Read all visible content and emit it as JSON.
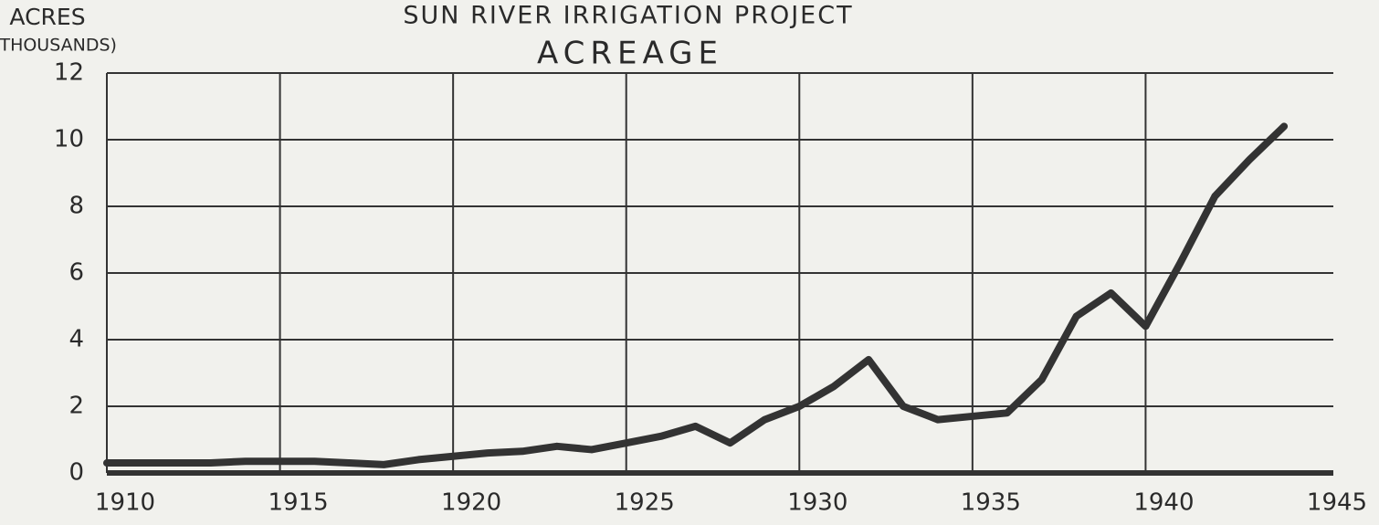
{
  "chart_data": {
    "type": "line",
    "title": "SUN RIVER IRRIGATION PROJECT",
    "subtitle": "ACREAGE",
    "y_label": "ACRES",
    "y_label_units": "(THOUSANDS)",
    "x": [
      1910,
      1911,
      1912,
      1913,
      1914,
      1915,
      1916,
      1917,
      1918,
      1919,
      1920,
      1921,
      1922,
      1923,
      1924,
      1925,
      1926,
      1927,
      1928,
      1929,
      1930,
      1931,
      1932,
      1933,
      1934,
      1935,
      1936,
      1937,
      1938,
      1939,
      1940,
      1941,
      1942,
      1943,
      1944
    ],
    "series": [
      {
        "name": "Acreage",
        "color": "#333333",
        "values": [
          0.3,
          0.3,
          0.3,
          0.3,
          0.35,
          0.35,
          0.35,
          0.3,
          0.25,
          0.4,
          0.5,
          0.6,
          0.65,
          0.8,
          0.7,
          0.9,
          1.1,
          1.4,
          0.9,
          1.6,
          2.0,
          2.6,
          3.4,
          2.0,
          1.6,
          1.7,
          1.8,
          2.8,
          4.7,
          5.4,
          4.4,
          6.3,
          8.3,
          9.4,
          10.4
        ]
      }
    ],
    "xlim": [
      1910,
      1945
    ],
    "xticks": [
      1910,
      1915,
      1920,
      1925,
      1930,
      1935,
      1940,
      1945
    ],
    "ylim": [
      0,
      12
    ],
    "yticks": [
      0,
      2,
      4,
      6,
      8,
      10,
      12
    ],
    "grid": true
  }
}
